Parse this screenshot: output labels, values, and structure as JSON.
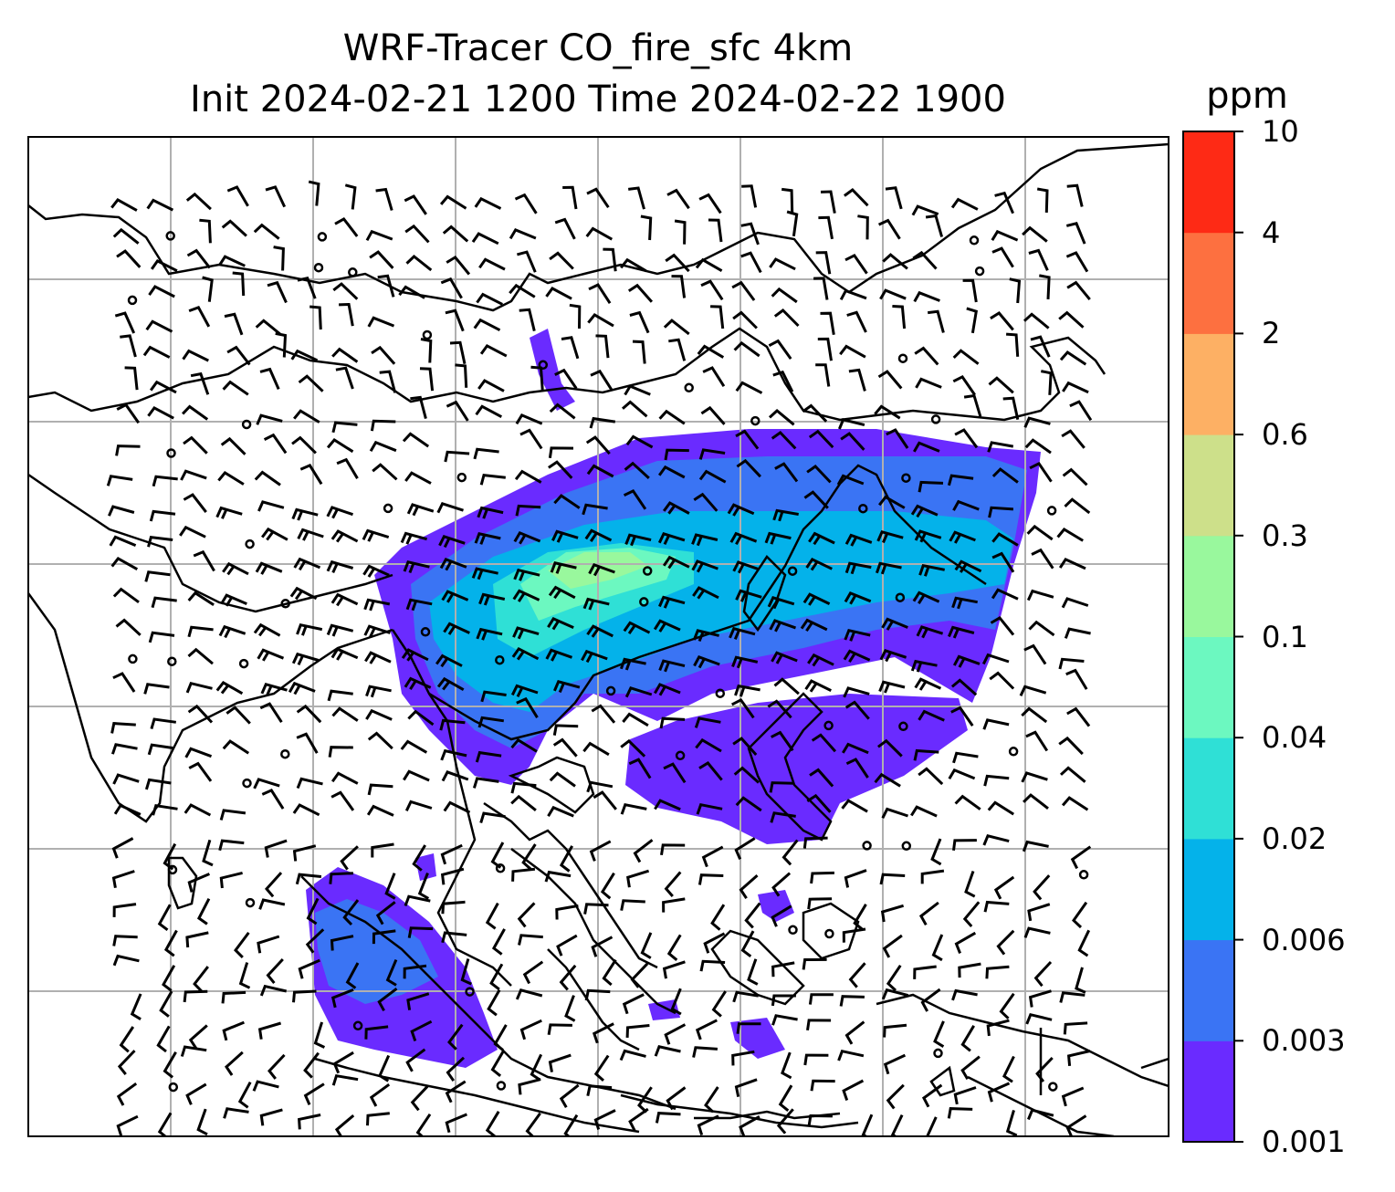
{
  "title": {
    "line1": "WRF-Tracer CO_fire_sfc 4km",
    "line2": "Init 2024-02-21 1200 Time 2024-02-22 1900"
  },
  "colorbar": {
    "unit": "ppm",
    "levels": [
      "0.001",
      "0.003",
      "0.006",
      "0.02",
      "0.04",
      "0.1",
      "0.3",
      "0.6",
      "2",
      "4",
      "10"
    ],
    "colors": [
      "#6a2bff",
      "#3a74f4",
      "#04b2ea",
      "#2fe0d6",
      "#6cf8c0",
      "#99f89d",
      "#cde08a",
      "#fdb064",
      "#fd7040",
      "#fe2a15"
    ]
  },
  "map": {
    "background": "#ffffff",
    "coastline_color": "#000000",
    "gridline_color": "#b0b0b0",
    "barb_color": "#000000",
    "features": [
      "coastlines",
      "borders",
      "gridlines",
      "wind-barbs",
      "co-fire-concentration"
    ]
  }
}
